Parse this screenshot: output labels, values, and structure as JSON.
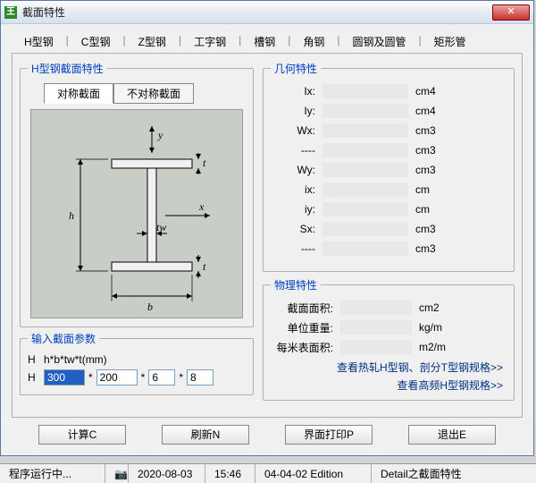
{
  "window": {
    "title": "截面特性"
  },
  "tabs": [
    "H型钢",
    "C型钢",
    "Z型钢",
    "工字钢",
    "槽钢",
    "角钢",
    "圆钢及圆管",
    "矩形管"
  ],
  "geom": {
    "legend": "几何特性",
    "rows": [
      {
        "l": "Ix:",
        "u": "cm4"
      },
      {
        "l": "Iy:",
        "u": "cm4"
      },
      {
        "l": "Wx:",
        "u": "cm3"
      },
      {
        "l": "----",
        "u": "cm3"
      },
      {
        "l": "Wy:",
        "u": "cm3"
      },
      {
        "l": "ix:",
        "u": "cm"
      },
      {
        "l": "iy:",
        "u": "cm"
      },
      {
        "l": "Sx:",
        "u": "cm3"
      },
      {
        "l": "----",
        "u": "cm3"
      }
    ]
  },
  "phys": {
    "legend": "物理特性",
    "rows": [
      {
        "l": "截面面积:",
        "u": "cm2"
      },
      {
        "l": "单位重量:",
        "u": "kg/m"
      },
      {
        "l": "每米表面积:",
        "u": "m2/m"
      }
    ],
    "link1": "查看热轧H型钢、剖分T型钢规格>>",
    "link2": "查看高频H型钢规格>>"
  },
  "sec": {
    "legend": "H型钢截面特性",
    "sym": "对称截面",
    "asym": "不对称截面"
  },
  "param": {
    "legend": "输入截面参数",
    "fmt_l": "H",
    "fmt": "h*b*tw*t(mm)",
    "il": "H",
    "v1": "300",
    "v2": "200",
    "v3": "6",
    "v4": "8",
    "star": "*"
  },
  "buttons": {
    "calc": "计算C",
    "refresh": "刷新N",
    "print": "界面打印P",
    "exit": "退出E"
  },
  "status": {
    "run": "程序运行中...",
    "date": "2020-08-03",
    "time": "15:46",
    "ed": "04-04-02 Edition",
    "det": "Detail之截面特性"
  }
}
